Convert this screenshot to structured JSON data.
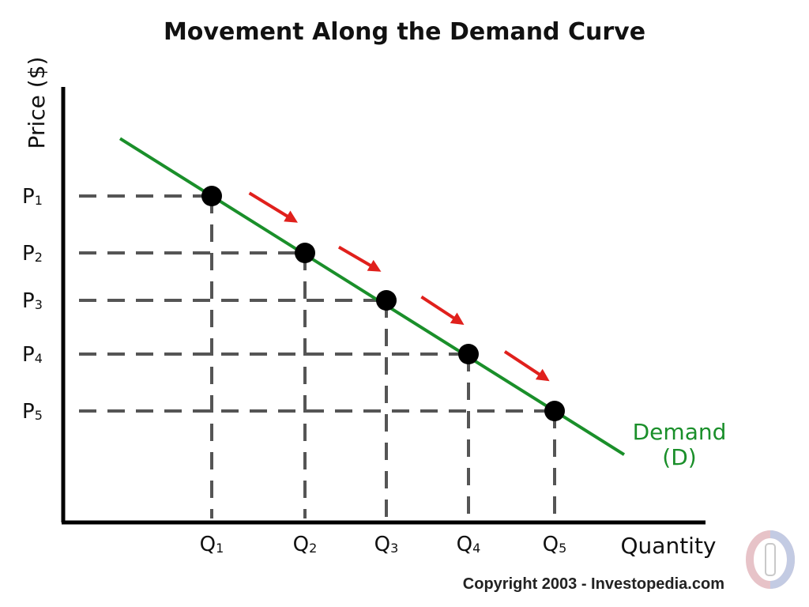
{
  "chart_data": {
    "type": "line",
    "title": "Movement Along the Demand Curve",
    "xlabel": "Quantity",
    "ylabel": "Price ($)",
    "x_ticks": [
      {
        "base": "Q",
        "sub": "1"
      },
      {
        "base": "Q",
        "sub": "2"
      },
      {
        "base": "Q",
        "sub": "3"
      },
      {
        "base": "Q",
        "sub": "4"
      },
      {
        "base": "Q",
        "sub": "5"
      }
    ],
    "y_ticks": [
      {
        "base": "P",
        "sub": "1"
      },
      {
        "base": "P",
        "sub": "2"
      },
      {
        "base": "P",
        "sub": "3"
      },
      {
        "base": "P",
        "sub": "4"
      },
      {
        "base": "P",
        "sub": "5"
      }
    ],
    "points": [
      {
        "x": 1,
        "y": 5
      },
      {
        "x": 2,
        "y": 4
      },
      {
        "x": 3,
        "y": 3
      },
      {
        "x": 4,
        "y": 2
      },
      {
        "x": 5,
        "y": 1
      }
    ],
    "curve_label_line1": "Demand",
    "curve_label_line2": "(D)",
    "curve_color": "#1a8f2a",
    "arrow_color": "#e0201c",
    "point_color": "#000000",
    "grid": false,
    "guide_lines": "dashed"
  },
  "copyright": "Copyright 2003 - Investopedia.com",
  "logo_icon": "investopedia-logo-icon"
}
